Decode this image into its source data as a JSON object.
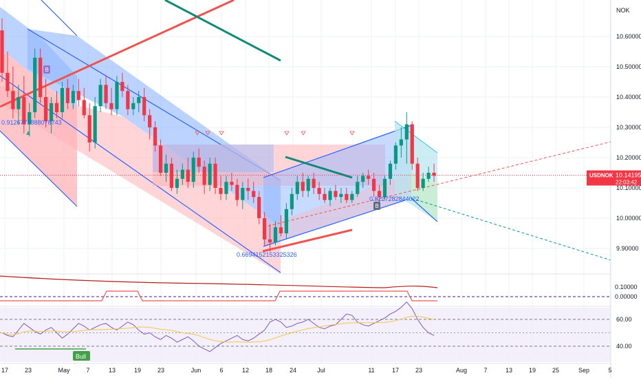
{
  "currency_label": "NOK",
  "chart_data": [
    {
      "type": "candlestick",
      "symbol": "USDNOK",
      "last_price": "10.14195",
      "countdown": "22:03:42",
      "y_ticks": [
        "10.60000",
        "10.50000",
        "10.40000",
        "10.30000",
        "10.20000",
        "10.10000",
        "10.00000",
        "9.90000"
      ],
      "x_ticks": [
        "17",
        "23",
        "May",
        "7",
        "13",
        "19",
        "23",
        "Jun",
        "6",
        "12",
        "18",
        "24",
        "Jul",
        "11",
        "17",
        "23",
        "Aug",
        "7",
        "13",
        "19",
        "25",
        "Sep",
        "5"
      ],
      "candles": [
        [
          10.62,
          10.66,
          10.45,
          10.48
        ],
        [
          10.48,
          10.55,
          10.4,
          10.42
        ],
        [
          10.42,
          10.5,
          10.33,
          10.36
        ],
        [
          10.36,
          10.44,
          10.31,
          10.4
        ],
        [
          10.4,
          10.47,
          10.28,
          10.31
        ],
        [
          10.31,
          10.38,
          10.27,
          10.35
        ],
        [
          10.35,
          10.56,
          10.33,
          10.53
        ],
        [
          10.53,
          10.56,
          10.38,
          10.4
        ],
        [
          10.4,
          10.46,
          10.3,
          10.32
        ],
        [
          10.32,
          10.4,
          10.28,
          10.38
        ],
        [
          10.38,
          10.42,
          10.33,
          10.35
        ],
        [
          10.35,
          10.45,
          10.33,
          10.43
        ],
        [
          10.43,
          10.46,
          10.36,
          10.38
        ],
        [
          10.38,
          10.44,
          10.36,
          10.42
        ],
        [
          10.42,
          10.46,
          10.37,
          10.39
        ],
        [
          10.39,
          10.43,
          10.33,
          10.34
        ],
        [
          10.34,
          10.38,
          10.22,
          10.25
        ],
        [
          10.25,
          10.4,
          10.23,
          10.37
        ],
        [
          10.37,
          10.46,
          10.35,
          10.44
        ],
        [
          10.44,
          10.47,
          10.36,
          10.38
        ],
        [
          10.38,
          10.43,
          10.34,
          10.36
        ],
        [
          10.36,
          10.47,
          10.34,
          10.45
        ],
        [
          10.45,
          10.48,
          10.4,
          10.42
        ],
        [
          10.42,
          10.44,
          10.34,
          10.36
        ],
        [
          10.36,
          10.4,
          10.34,
          10.38
        ],
        [
          10.38,
          10.42,
          10.35,
          10.4
        ],
        [
          10.4,
          10.43,
          10.32,
          10.34
        ],
        [
          10.34,
          10.36,
          10.26,
          10.3
        ],
        [
          10.3,
          10.32,
          10.22,
          10.24
        ],
        [
          10.24,
          10.26,
          10.14,
          10.15
        ],
        [
          10.15,
          10.21,
          10.12,
          10.18
        ],
        [
          10.18,
          10.2,
          10.09,
          10.1
        ],
        [
          10.1,
          10.16,
          10.08,
          10.13
        ],
        [
          10.13,
          10.18,
          10.11,
          10.16
        ],
        [
          10.16,
          10.2,
          10.1,
          10.12
        ],
        [
          10.12,
          10.22,
          10.1,
          10.2
        ],
        [
          10.2,
          10.23,
          10.15,
          10.17
        ],
        [
          10.17,
          10.19,
          10.08,
          10.11
        ],
        [
          10.11,
          10.2,
          10.09,
          10.18
        ],
        [
          10.18,
          10.2,
          10.08,
          10.1
        ],
        [
          10.1,
          10.14,
          10.06,
          10.08
        ],
        [
          10.08,
          10.14,
          10.06,
          10.12
        ],
        [
          10.12,
          10.15,
          10.09,
          10.11
        ],
        [
          10.11,
          10.13,
          10.04,
          10.06
        ],
        [
          10.06,
          10.12,
          10.03,
          10.1
        ],
        [
          10.1,
          10.13,
          10.06,
          10.09
        ],
        [
          10.09,
          10.12,
          10.05,
          10.07
        ],
        [
          10.07,
          10.09,
          9.98,
          10.0
        ],
        [
          10.0,
          10.02,
          9.91,
          9.93
        ],
        [
          9.93,
          9.98,
          9.89,
          9.92
        ],
        [
          9.92,
          9.99,
          9.91,
          9.97
        ],
        [
          9.97,
          10.01,
          9.94,
          9.95
        ],
        [
          9.95,
          10.05,
          9.93,
          10.03
        ],
        [
          10.03,
          10.1,
          10.01,
          10.08
        ],
        [
          10.08,
          10.14,
          10.06,
          10.12
        ],
        [
          10.12,
          10.15,
          10.07,
          10.09
        ],
        [
          10.09,
          10.14,
          10.07,
          10.13
        ],
        [
          10.13,
          10.15,
          10.08,
          10.1
        ],
        [
          10.1,
          10.12,
          10.06,
          10.08
        ],
        [
          10.08,
          10.1,
          10.05,
          10.06
        ],
        [
          10.06,
          10.1,
          10.04,
          10.09
        ],
        [
          10.09,
          10.11,
          10.06,
          10.07
        ],
        [
          10.07,
          10.1,
          10.05,
          10.08
        ],
        [
          10.08,
          10.1,
          10.05,
          10.06
        ],
        [
          10.06,
          10.09,
          10.05,
          10.08
        ],
        [
          10.08,
          10.14,
          10.07,
          10.12
        ],
        [
          10.12,
          10.15,
          10.1,
          10.14
        ],
        [
          10.14,
          10.16,
          10.11,
          10.13
        ],
        [
          10.13,
          10.15,
          10.07,
          10.09
        ],
        [
          10.09,
          10.11,
          10.05,
          10.07
        ],
        [
          10.07,
          10.14,
          10.06,
          10.13
        ],
        [
          10.13,
          10.19,
          10.11,
          10.18
        ],
        [
          10.18,
          10.25,
          10.16,
          10.24
        ],
        [
          10.24,
          10.3,
          10.2,
          10.26
        ],
        [
          10.26,
          10.35,
          10.18,
          10.31
        ],
        [
          10.31,
          10.32,
          10.16,
          10.18
        ],
        [
          10.18,
          10.2,
          10.09,
          10.1
        ],
        [
          10.1,
          10.15,
          10.09,
          10.13
        ],
        [
          10.13,
          10.17,
          10.12,
          10.15
        ],
        [
          10.15,
          10.18,
          10.12,
          10.14
        ]
      ],
      "indicator_1": {
        "values": [
          10.12,
          10.113,
          10.11,
          10.108,
          10.107,
          10.104,
          10.102,
          10.103,
          10.101,
          10.1
        ],
        "y_ticks": [
          "0.10000",
          "0.00000"
        ]
      },
      "rsi": {
        "y_ticks": [
          "60.00",
          "40.00"
        ],
        "values": [
          50,
          48,
          47,
          52,
          57,
          54,
          51,
          49,
          52,
          54,
          50,
          46,
          49,
          53,
          57,
          55,
          52,
          54,
          56,
          57,
          54,
          52,
          55,
          58,
          56,
          52,
          49,
          50,
          47,
          45,
          48,
          46,
          43,
          45,
          47,
          44,
          40,
          38,
          36,
          39,
          42,
          44,
          46,
          48,
          45,
          44,
          46,
          49,
          52,
          58,
          60,
          58,
          54,
          55,
          57,
          58,
          60,
          57,
          54,
          53,
          55,
          56,
          60,
          64,
          63,
          58,
          56,
          55,
          57,
          59,
          61,
          64,
          66,
          69,
          73,
          68,
          60,
          54,
          50,
          48
        ]
      },
      "labels": {
        "fib_a": "0.9126777888078743",
        "fib_b": "0.6694152153325326",
        "fib_c": "0.8227282844022",
        "marker_b": "B",
        "bull": "Bull"
      },
      "colors": {
        "up": "#089981",
        "down": "#f23645",
        "price_line": "#f23645",
        "rsi": "#7e57c2",
        "rsi_ma": "#f7c548",
        "fill_blue": "#90b6ff",
        "fill_red": "#ffb3b8",
        "trend_teal": "#0e8a76",
        "trend_red": "#ef5350"
      }
    }
  ]
}
